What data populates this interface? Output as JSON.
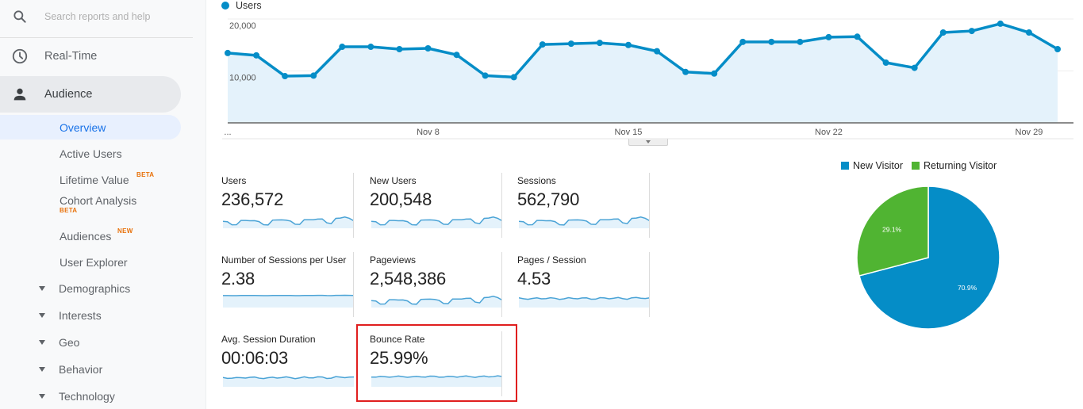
{
  "sidebar": {
    "search": {
      "placeholder": "Search reports and help",
      "icon": "search-icon"
    },
    "top_items": [
      {
        "label": "Real-Time",
        "icon": "clock-icon"
      },
      {
        "label": "Audience",
        "icon": "person-icon",
        "active": true
      }
    ],
    "audience_items": [
      {
        "label": "Overview",
        "selected": true
      },
      {
        "label": "Active Users"
      },
      {
        "label": "Lifetime Value",
        "badge": "BETA"
      },
      {
        "label": "Cohort Analysis",
        "badge": "BETA"
      },
      {
        "label": "Audiences",
        "badge": "NEW"
      },
      {
        "label": "User Explorer"
      }
    ],
    "tree_items": [
      {
        "label": "Demographics"
      },
      {
        "label": "Interests"
      },
      {
        "label": "Geo"
      },
      {
        "label": "Behavior"
      },
      {
        "label": "Technology"
      }
    ]
  },
  "main_chart": {
    "legend_label": "Users",
    "color": "#058dc7",
    "fill": "#e4f2fb",
    "y_ticks": [
      "20,000",
      "10,000"
    ],
    "x_ticks": [
      "...",
      "Nov 8",
      "Nov 15",
      "Nov 22",
      "Nov 29"
    ]
  },
  "metrics": [
    {
      "label": "Users",
      "value": "236,572"
    },
    {
      "label": "New Users",
      "value": "200,548"
    },
    {
      "label": "Sessions",
      "value": "562,790"
    },
    {
      "label": "Number of Sessions per User",
      "value": "2.38"
    },
    {
      "label": "Pageviews",
      "value": "2,548,386"
    },
    {
      "label": "Pages / Session",
      "value": "4.53"
    },
    {
      "label": "Avg. Session Duration",
      "value": "00:06:03"
    },
    {
      "label": "Bounce Rate",
      "value": "25.99%",
      "highlighted": true
    }
  ],
  "pie": {
    "legend": [
      {
        "label": "New Visitor",
        "color": "#058dc7"
      },
      {
        "label": "Returning Visitor",
        "color": "#50b432"
      }
    ],
    "labels": [
      "70.9%",
      "29.1%"
    ]
  },
  "chart_data": [
    {
      "type": "line",
      "title": "Users",
      "xlabel": "",
      "ylabel": "",
      "ylim": [
        0,
        20000
      ],
      "grid": true,
      "x_tick_labels": [
        "...",
        "Nov 8",
        "Nov 15",
        "Nov 22",
        "Nov 29"
      ],
      "x": [
        "Nov 1",
        "Nov 2",
        "Nov 3",
        "Nov 4",
        "Nov 5",
        "Nov 6",
        "Nov 7",
        "Nov 8",
        "Nov 9",
        "Nov 10",
        "Nov 11",
        "Nov 12",
        "Nov 13",
        "Nov 14",
        "Nov 15",
        "Nov 16",
        "Nov 17",
        "Nov 18",
        "Nov 19",
        "Nov 20",
        "Nov 21",
        "Nov 22",
        "Nov 23",
        "Nov 24",
        "Nov 25",
        "Nov 26",
        "Nov 27",
        "Nov 28",
        "Nov 29",
        "Nov 30"
      ],
      "series": [
        {
          "name": "Users",
          "values": [
            13450,
            13000,
            9000,
            9100,
            14650,
            14650,
            14200,
            14350,
            13100,
            9100,
            8800,
            15100,
            15250,
            15400,
            15000,
            13800,
            9800,
            9500,
            15600,
            15600,
            15600,
            16500,
            16600,
            11600,
            10600,
            17400,
            17700,
            19100,
            17400,
            14200
          ]
        }
      ],
      "legend_position": "top-left"
    },
    {
      "type": "pie",
      "title": "",
      "categories": [
        "New Visitor",
        "Returning Visitor"
      ],
      "values": [
        70.9,
        29.1
      ],
      "legend_position": "top"
    }
  ]
}
